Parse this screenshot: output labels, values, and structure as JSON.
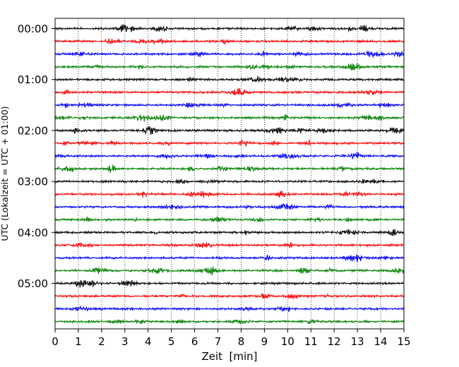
{
  "chart_data": {
    "type": "line",
    "title": "",
    "xlabel": "Zeit  [min]",
    "ylabel": "UTC (Lokalzeit = UTC + 01:00)",
    "xlim": [
      0,
      15
    ],
    "x_ticks": [
      "0",
      "1",
      "2",
      "3",
      "4",
      "5",
      "6",
      "7",
      "8",
      "9",
      "10",
      "11",
      "12",
      "13",
      "14",
      "15"
    ],
    "y_tick_labels": [
      "00:00",
      "01:00",
      "02:00",
      "03:00",
      "04:00",
      "05:00"
    ],
    "row_start_times": [
      "00:00",
      "00:15",
      "00:30",
      "00:45",
      "01:00",
      "01:15",
      "01:30",
      "01:45",
      "02:00",
      "02:15",
      "02:30",
      "02:45",
      "03:00",
      "03:15",
      "03:30",
      "03:45",
      "04:00",
      "04:15",
      "04:30",
      "04:45",
      "05:00",
      "05:15",
      "05:30",
      "05:45"
    ],
    "row_colors": [
      "#000000",
      "#ff0000",
      "#0000ff",
      "#008000"
    ],
    "grid": "vertical dotted",
    "series_description": "24 seismogram traces, one per 15-minute row, color cycle black/red/blue/green"
  }
}
